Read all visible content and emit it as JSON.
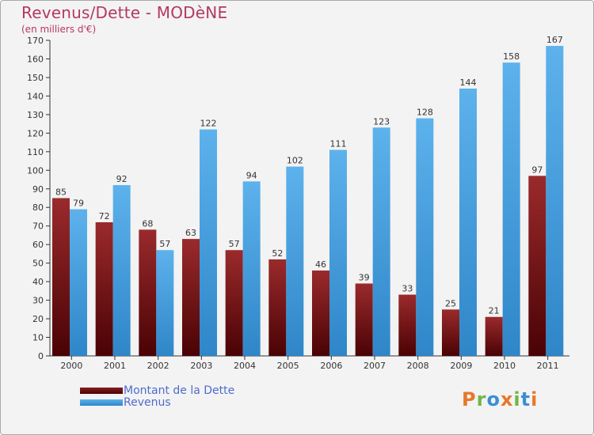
{
  "colors": {
    "title": "#b5385f",
    "dette": "#7a1416",
    "revenus": "#4aa3e0",
    "legend_text": "#4e6ccd"
  },
  "logo": {
    "text": "Proxiti"
  },
  "chart_data": {
    "type": "bar",
    "title": "Revenus/Dette - MODèNE",
    "subtitle": "(en milliers d'€)",
    "xlabel": "",
    "ylabel": "",
    "ylim": [
      0,
      170
    ],
    "ytick_step": 10,
    "grid": false,
    "legend_position": "bottom-left",
    "categories": [
      "2000",
      "2001",
      "2002",
      "2003",
      "2004",
      "2005",
      "2006",
      "2007",
      "2008",
      "2009",
      "2010",
      "2011"
    ],
    "series": [
      {
        "name": "Montant de la Dette",
        "color": "#7a1416",
        "values": [
          85,
          72,
          68,
          63,
          57,
          52,
          46,
          39,
          33,
          25,
          21,
          97
        ]
      },
      {
        "name": "Revenus",
        "color": "#4aa3e0",
        "values": [
          79,
          92,
          57,
          122,
          94,
          102,
          111,
          123,
          128,
          144,
          158,
          167
        ]
      }
    ]
  }
}
